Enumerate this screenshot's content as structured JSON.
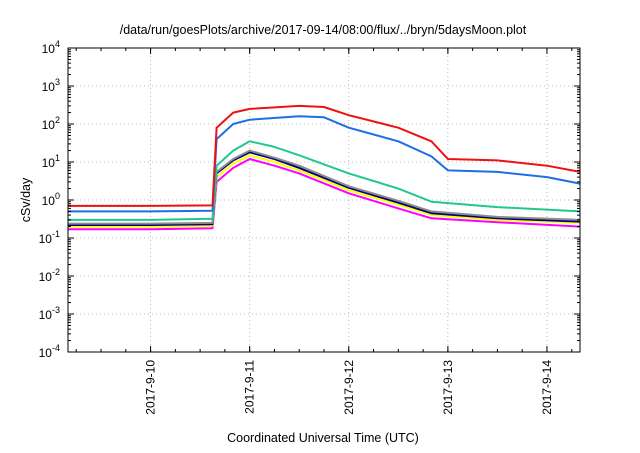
{
  "chart_data": {
    "type": "line",
    "title": "/data/run/goesPlots/archive/2017-09-14/08:00/flux/../bryn/5daysMoon.plot",
    "xlabel": "Coordinated Universal Time (UTC)",
    "ylabel": "cSv/day",
    "yscale": "log",
    "ylim": [
      0.0001,
      10000
    ],
    "xlim": [
      "2017-09-09 04:00",
      "2017-09-14 08:00"
    ],
    "grid": true,
    "x_ticks": [
      "2017-9-10",
      "2017-9-11",
      "2017-9-12",
      "2017-9-13",
      "2017-9-14"
    ],
    "y_ticks": [
      {
        "value": 0.0001,
        "base": "10",
        "exp": "-4"
      },
      {
        "value": 0.001,
        "base": "10",
        "exp": "-3"
      },
      {
        "value": 0.01,
        "base": "10",
        "exp": "-2"
      },
      {
        "value": 0.1,
        "base": "10",
        "exp": "-1"
      },
      {
        "value": 1,
        "base": "10",
        "exp": "0"
      },
      {
        "value": 10,
        "base": "10",
        "exp": "1"
      },
      {
        "value": 100,
        "base": "10",
        "exp": "2"
      },
      {
        "value": 1000,
        "base": "10",
        "exp": "3"
      },
      {
        "value": 10000,
        "base": "10",
        "exp": "4"
      }
    ],
    "series": [
      {
        "color": "#ff00ff",
        "values": [
          [
            "2017-09-09 04:00",
            0.17
          ],
          [
            "2017-09-10 00:00",
            0.17
          ],
          [
            "2017-09-10 15:00",
            0.18
          ],
          [
            "2017-09-10 16:00",
            3
          ],
          [
            "2017-09-10 20:00",
            7
          ],
          [
            "2017-09-11 00:00",
            12
          ],
          [
            "2017-09-11 06:00",
            8
          ],
          [
            "2017-09-11 12:00",
            5
          ],
          [
            "2017-09-12 00:00",
            1.5
          ],
          [
            "2017-09-12 12:00",
            0.6
          ],
          [
            "2017-09-12 20:00",
            0.33
          ],
          [
            "2017-09-13 12:00",
            0.26
          ],
          [
            "2017-09-14 08:00",
            0.2
          ]
        ]
      },
      {
        "color": "#ffff00",
        "values": [
          [
            "2017-09-09 04:00",
            0.2
          ],
          [
            "2017-09-10 00:00",
            0.2
          ],
          [
            "2017-09-10 15:00",
            0.21
          ],
          [
            "2017-09-10 16:00",
            4
          ],
          [
            "2017-09-10 20:00",
            9
          ],
          [
            "2017-09-11 00:00",
            15
          ],
          [
            "2017-09-11 06:00",
            10
          ],
          [
            "2017-09-11 12:00",
            6
          ],
          [
            "2017-09-12 00:00",
            1.8
          ],
          [
            "2017-09-12 12:00",
            0.75
          ],
          [
            "2017-09-12 20:00",
            0.4
          ],
          [
            "2017-09-13 12:00",
            0.3
          ],
          [
            "2017-09-14 08:00",
            0.25
          ]
        ]
      },
      {
        "color": "#000080",
        "values": [
          [
            "2017-09-09 04:00",
            0.22
          ],
          [
            "2017-09-10 00:00",
            0.22
          ],
          [
            "2017-09-10 15:00",
            0.23
          ],
          [
            "2017-09-10 16:00",
            5
          ],
          [
            "2017-09-10 20:00",
            11
          ],
          [
            "2017-09-11 00:00",
            18
          ],
          [
            "2017-09-11 06:00",
            12
          ],
          [
            "2017-09-11 12:00",
            7
          ],
          [
            "2017-09-12 00:00",
            2.1
          ],
          [
            "2017-09-12 12:00",
            0.85
          ],
          [
            "2017-09-12 20:00",
            0.45
          ],
          [
            "2017-09-13 12:00",
            0.33
          ],
          [
            "2017-09-14 08:00",
            0.27
          ]
        ]
      },
      {
        "color": "#8c8c8c",
        "values": [
          [
            "2017-09-09 04:00",
            0.24
          ],
          [
            "2017-09-10 00:00",
            0.24
          ],
          [
            "2017-09-10 15:00",
            0.25
          ],
          [
            "2017-09-10 16:00",
            5.5
          ],
          [
            "2017-09-10 20:00",
            12
          ],
          [
            "2017-09-11 00:00",
            20
          ],
          [
            "2017-09-11 06:00",
            13
          ],
          [
            "2017-09-11 12:00",
            8
          ],
          [
            "2017-09-12 00:00",
            2.3
          ],
          [
            "2017-09-12 12:00",
            0.95
          ],
          [
            "2017-09-12 20:00",
            0.5
          ],
          [
            "2017-09-13 12:00",
            0.36
          ],
          [
            "2017-09-14 08:00",
            0.3
          ]
        ]
      },
      {
        "color": "#20c890",
        "values": [
          [
            "2017-09-09 04:00",
            0.3
          ],
          [
            "2017-09-10 00:00",
            0.3
          ],
          [
            "2017-09-10 15:00",
            0.32
          ],
          [
            "2017-09-10 16:00",
            8
          ],
          [
            "2017-09-10 20:00",
            20
          ],
          [
            "2017-09-11 00:00",
            35
          ],
          [
            "2017-09-11 06:00",
            25
          ],
          [
            "2017-09-11 12:00",
            15
          ],
          [
            "2017-09-12 00:00",
            5
          ],
          [
            "2017-09-12 12:00",
            2
          ],
          [
            "2017-09-12 20:00",
            0.9
          ],
          [
            "2017-09-13 12:00",
            0.65
          ],
          [
            "2017-09-14 08:00",
            0.5
          ]
        ]
      },
      {
        "color": "#1e6ee6",
        "values": [
          [
            "2017-09-09 04:00",
            0.5
          ],
          [
            "2017-09-10 00:00",
            0.5
          ],
          [
            "2017-09-10 15:00",
            0.52
          ],
          [
            "2017-09-10 16:00",
            40
          ],
          [
            "2017-09-10 20:00",
            100
          ],
          [
            "2017-09-11 00:00",
            130
          ],
          [
            "2017-09-11 12:00",
            160
          ],
          [
            "2017-09-11 18:00",
            150
          ],
          [
            "2017-09-12 00:00",
            80
          ],
          [
            "2017-09-12 12:00",
            35
          ],
          [
            "2017-09-12 20:00",
            14
          ],
          [
            "2017-09-13 00:00",
            6
          ],
          [
            "2017-09-13 12:00",
            5.5
          ],
          [
            "2017-09-14 00:00",
            4
          ],
          [
            "2017-09-14 08:00",
            2.7
          ]
        ]
      },
      {
        "color": "#ee1111",
        "values": [
          [
            "2017-09-09 04:00",
            0.7
          ],
          [
            "2017-09-10 00:00",
            0.7
          ],
          [
            "2017-09-10 15:00",
            0.72
          ],
          [
            "2017-09-10 16:00",
            80
          ],
          [
            "2017-09-10 20:00",
            200
          ],
          [
            "2017-09-11 00:00",
            250
          ],
          [
            "2017-09-11 12:00",
            300
          ],
          [
            "2017-09-11 18:00",
            280
          ],
          [
            "2017-09-12 00:00",
            170
          ],
          [
            "2017-09-12 12:00",
            80
          ],
          [
            "2017-09-12 20:00",
            35
          ],
          [
            "2017-09-13 00:00",
            12
          ],
          [
            "2017-09-13 12:00",
            11
          ],
          [
            "2017-09-14 00:00",
            8
          ],
          [
            "2017-09-14 08:00",
            5.5
          ]
        ]
      }
    ]
  }
}
